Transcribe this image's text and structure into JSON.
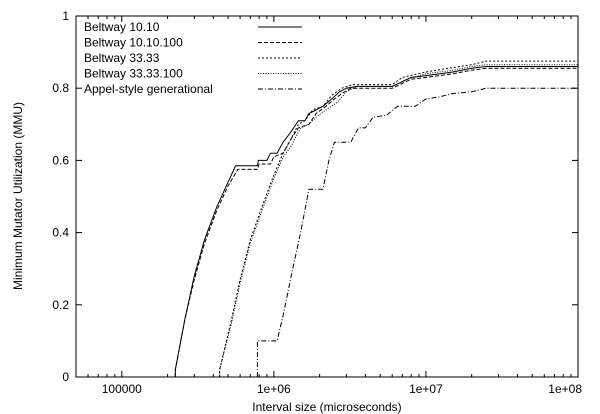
{
  "chart_data": {
    "type": "line",
    "title": "",
    "xlabel": "Interval size (microseconds)",
    "ylabel": "Minimum Mutator Utilization (MMU)",
    "x_scale": "log",
    "xlim": [
      50000,
      100000000
    ],
    "ylim": [
      0,
      1
    ],
    "x_ticks": [
      100000,
      1000000,
      10000000,
      100000000
    ],
    "x_tick_labels": [
      "100000",
      "1e+06",
      "1e+07",
      "1e+08"
    ],
    "y_ticks": [
      0,
      0.2,
      0.4,
      0.6,
      0.8,
      1
    ],
    "y_tick_labels": [
      "0",
      "0.2",
      "0.4",
      "0.6",
      "0.8",
      "1"
    ],
    "grid": false,
    "legend_position": "top-left",
    "series": [
      {
        "name": "Beltway 10.10",
        "dash": "solid",
        "points": [
          [
            225000,
            0
          ],
          [
            225000,
            0.02
          ],
          [
            260000,
            0.16
          ],
          [
            300000,
            0.28
          ],
          [
            350000,
            0.38
          ],
          [
            420000,
            0.47
          ],
          [
            500000,
            0.54
          ],
          [
            560000,
            0.585
          ],
          [
            780000,
            0.585
          ],
          [
            790000,
            0.6
          ],
          [
            900000,
            0.6
          ],
          [
            950000,
            0.62
          ],
          [
            1050000,
            0.62
          ],
          [
            1150000,
            0.65
          ],
          [
            1300000,
            0.68
          ],
          [
            1450000,
            0.71
          ],
          [
            1600000,
            0.71
          ],
          [
            1700000,
            0.73
          ],
          [
            1900000,
            0.74
          ],
          [
            2100000,
            0.75
          ],
          [
            2400000,
            0.77
          ],
          [
            2700000,
            0.79
          ],
          [
            3000000,
            0.8
          ],
          [
            3500000,
            0.805
          ],
          [
            6000000,
            0.805
          ],
          [
            8000000,
            0.83
          ],
          [
            10000000,
            0.835
          ],
          [
            15000000,
            0.845
          ],
          [
            20000000,
            0.855
          ],
          [
            25000000,
            0.86
          ],
          [
            100000000,
            0.86
          ]
        ]
      },
      {
        "name": "Beltway 10.10.100",
        "dash": "dashed",
        "points": [
          [
            225000,
            0
          ],
          [
            225000,
            0.02
          ],
          [
            260000,
            0.16
          ],
          [
            300000,
            0.27
          ],
          [
            350000,
            0.37
          ],
          [
            420000,
            0.46
          ],
          [
            500000,
            0.53
          ],
          [
            580000,
            0.575
          ],
          [
            780000,
            0.575
          ],
          [
            800000,
            0.59
          ],
          [
            950000,
            0.59
          ],
          [
            1000000,
            0.61
          ],
          [
            1150000,
            0.62
          ],
          [
            1300000,
            0.66
          ],
          [
            1450000,
            0.69
          ],
          [
            1700000,
            0.7
          ],
          [
            1900000,
            0.73
          ],
          [
            2200000,
            0.75
          ],
          [
            2500000,
            0.77
          ],
          [
            2800000,
            0.785
          ],
          [
            3200000,
            0.8
          ],
          [
            6000000,
            0.8
          ],
          [
            8000000,
            0.825
          ],
          [
            10000000,
            0.83
          ],
          [
            15000000,
            0.84
          ],
          [
            20000000,
            0.85
          ],
          [
            25000000,
            0.855
          ],
          [
            100000000,
            0.855
          ]
        ]
      },
      {
        "name": "Beltway 33.33",
        "dash": "short-dash",
        "points": [
          [
            440000,
            0
          ],
          [
            440000,
            0.02
          ],
          [
            520000,
            0.15
          ],
          [
            600000,
            0.27
          ],
          [
            700000,
            0.38
          ],
          [
            850000,
            0.48
          ],
          [
            1000000,
            0.56
          ],
          [
            1150000,
            0.62
          ],
          [
            1300000,
            0.66
          ],
          [
            1450000,
            0.7
          ],
          [
            1600000,
            0.71
          ],
          [
            1800000,
            0.74
          ],
          [
            2100000,
            0.75
          ],
          [
            2400000,
            0.78
          ],
          [
            2800000,
            0.8
          ],
          [
            3300000,
            0.81
          ],
          [
            6000000,
            0.81
          ],
          [
            7000000,
            0.83
          ],
          [
            10000000,
            0.845
          ],
          [
            14000000,
            0.855
          ],
          [
            20000000,
            0.865
          ],
          [
            25000000,
            0.875
          ],
          [
            100000000,
            0.875
          ]
        ]
      },
      {
        "name": "Beltway 33.33.100",
        "dash": "dotted",
        "points": [
          [
            440000,
            0
          ],
          [
            440000,
            0.02
          ],
          [
            520000,
            0.14
          ],
          [
            600000,
            0.26
          ],
          [
            700000,
            0.37
          ],
          [
            850000,
            0.47
          ],
          [
            1000000,
            0.55
          ],
          [
            1150000,
            0.61
          ],
          [
            1300000,
            0.64
          ],
          [
            1500000,
            0.69
          ],
          [
            1700000,
            0.7
          ],
          [
            1900000,
            0.72
          ],
          [
            2200000,
            0.74
          ],
          [
            2600000,
            0.76
          ],
          [
            3000000,
            0.79
          ],
          [
            3500000,
            0.805
          ],
          [
            6000000,
            0.805
          ],
          [
            7500000,
            0.825
          ],
          [
            10000000,
            0.84
          ],
          [
            15000000,
            0.85
          ],
          [
            20000000,
            0.86
          ],
          [
            25000000,
            0.865
          ],
          [
            100000000,
            0.865
          ]
        ]
      },
      {
        "name": "Appel-style generational",
        "dash": "dash-dot",
        "points": [
          [
            780000,
            0
          ],
          [
            780000,
            0.1
          ],
          [
            1050000,
            0.1
          ],
          [
            1150000,
            0.17
          ],
          [
            1300000,
            0.28
          ],
          [
            1500000,
            0.4
          ],
          [
            1700000,
            0.52
          ],
          [
            2100000,
            0.52
          ],
          [
            2300000,
            0.6
          ],
          [
            2500000,
            0.65
          ],
          [
            3200000,
            0.65
          ],
          [
            3600000,
            0.69
          ],
          [
            4000000,
            0.69
          ],
          [
            4500000,
            0.72
          ],
          [
            5500000,
            0.725
          ],
          [
            6500000,
            0.75
          ],
          [
            8500000,
            0.75
          ],
          [
            10000000,
            0.77
          ],
          [
            12000000,
            0.775
          ],
          [
            15000000,
            0.785
          ],
          [
            20000000,
            0.79
          ],
          [
            25000000,
            0.8
          ],
          [
            100000000,
            0.8
          ]
        ]
      }
    ]
  }
}
